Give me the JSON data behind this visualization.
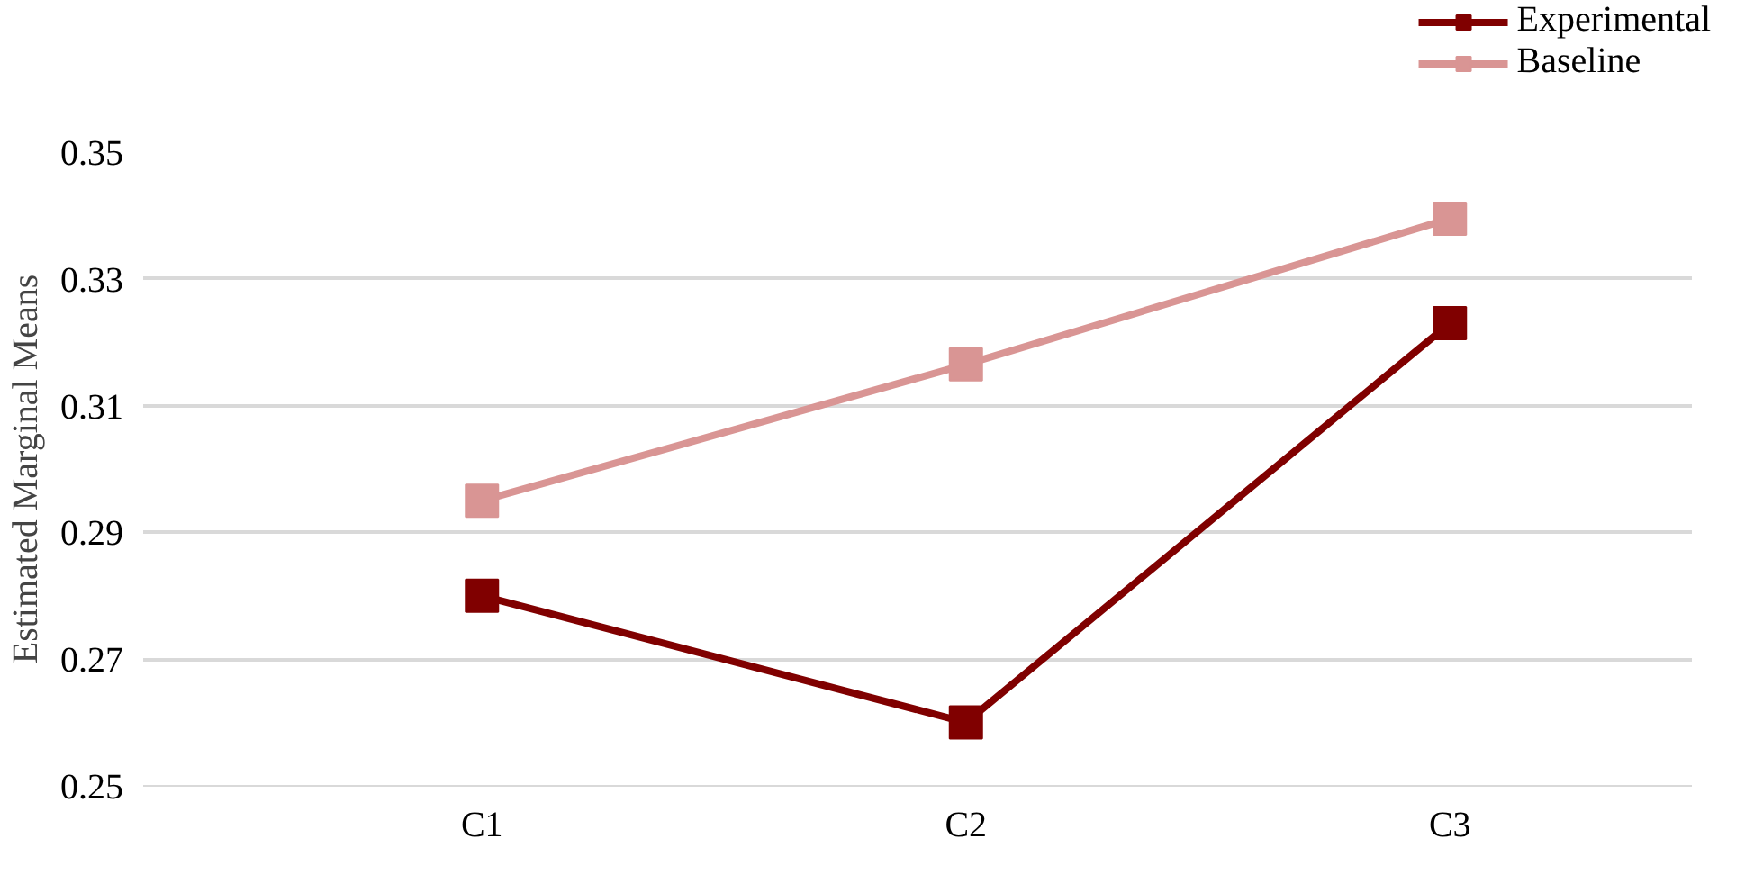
{
  "chart_data": {
    "type": "line",
    "ylabel": "Estimated Marginal Means",
    "categories": [
      "C1",
      "C2",
      "C3"
    ],
    "series": [
      {
        "name": "Experimental",
        "color": "#800000",
        "values": [
          0.28,
          0.26,
          0.323
        ]
      },
      {
        "name": "Baseline",
        "color": "#d99594",
        "values": [
          0.295,
          0.3165,
          0.3395
        ]
      }
    ],
    "ylim": [
      0.25,
      0.35
    ],
    "yticks": [
      0.25,
      0.27,
      0.29,
      0.31,
      0.33,
      0.35
    ],
    "grid": "y",
    "legend": "top right",
    "marker": "square",
    "line_style": "solid"
  }
}
